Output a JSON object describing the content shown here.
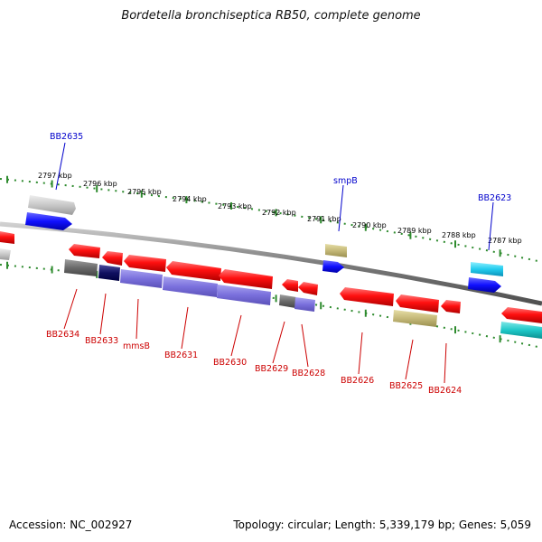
{
  "title": "Bordetella bronchiseptica RB50, complete genome",
  "footer": {
    "accession": "Accession: NC_002927",
    "summary": "Topology: circular; Length: 5,339,179 bp; Genes: 5,059"
  },
  "colors": {
    "forward_tick": "#2e8b2e",
    "backbone": "#808080",
    "label_top": "#0000cc",
    "label_bottom": "#cc0000"
  },
  "scale_labels": [
    "2797 kbp",
    "2796 kbp",
    "2795 kbp",
    "2794 kbp",
    "2793 kbp",
    "2792 kbp",
    "2791 kbp",
    "2790 kbp",
    "2789 kbp",
    "2788 kbp",
    "2787 kbp"
  ],
  "top_gene_labels": [
    "BB2635",
    "smpB",
    "BB2623"
  ],
  "bottom_gene_labels": [
    "BB2634",
    "BB2633",
    "mmsB",
    "BB2631",
    "BB2630",
    "BB2629",
    "BB2628",
    "BB2626",
    "BB2625",
    "BB2624"
  ]
}
